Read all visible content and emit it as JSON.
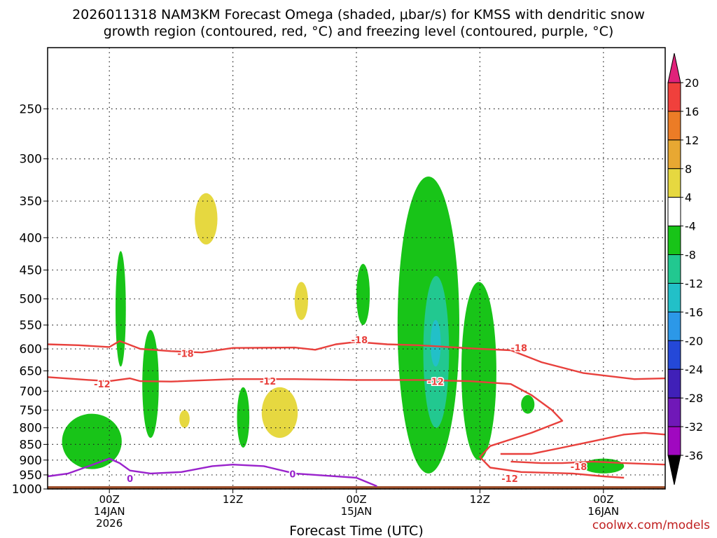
{
  "chart_data": {
    "type": "heatmap",
    "title_line1": "2026011318 NAM3KM Forecast Omega (shaded, μbar/s) for KMSS with dendritic snow",
    "title_line2": "growth region (contoured, red, °C) and freezing level (contoured, purple, °C)",
    "xlabel": "Forecast Time (UTC)",
    "credit": "coolwx.com/models",
    "x_range_hours": [
      -6,
      54
    ],
    "x_ticks": [
      {
        "hour": 0,
        "lines": [
          "00Z",
          "14JAN",
          "2026"
        ]
      },
      {
        "hour": 12,
        "lines": [
          "12Z"
        ]
      },
      {
        "hour": 24,
        "lines": [
          "00Z",
          "15JAN"
        ]
      },
      {
        "hour": 36,
        "lines": [
          "12Z"
        ]
      },
      {
        "hour": 48,
        "lines": [
          "00Z",
          "16JAN"
        ]
      }
    ],
    "y_scale": "log-pressure",
    "y_range_hpa": [
      1000,
      200
    ],
    "y_ticks_hpa": [
      250,
      300,
      350,
      400,
      450,
      500,
      550,
      600,
      650,
      700,
      750,
      800,
      850,
      900,
      950,
      1000
    ],
    "grid": true,
    "colorbar": {
      "levels": [
        20,
        16,
        12,
        8,
        4,
        -4,
        -8,
        -12,
        -16,
        -20,
        -24,
        -28,
        -32,
        -36
      ],
      "colors": [
        "#e0227a",
        "#f0403c",
        "#ec7c26",
        "#e8a832",
        "#e6d840",
        "#ffffff",
        "#18c418",
        "#22c890",
        "#22c0c8",
        "#2c98e8",
        "#2448d8",
        "#4020b8",
        "#7018b8",
        "#a008c0",
        "#a8a8a8",
        "#000000"
      ]
    },
    "omega_regions": [
      {
        "sign": "ascent",
        "level": -4,
        "hour_range": [
          0.6,
          1.6
        ],
        "p_range": [
          640,
          420
        ]
      },
      {
        "sign": "ascent",
        "level": -4,
        "hour_range": [
          3.2,
          4.8
        ],
        "p_range": [
          830,
          560
        ]
      },
      {
        "sign": "ascent",
        "level": -4,
        "hour_range": [
          -4.6,
          1.2
        ],
        "p_range": [
          930,
          760
        ]
      },
      {
        "sign": "ascent",
        "level": -4,
        "hour_range": [
          12.4,
          13.6
        ],
        "p_range": [
          860,
          690
        ]
      },
      {
        "sign": "ascent",
        "level": -4,
        "hour_range": [
          24.0,
          25.3
        ],
        "p_range": [
          550,
          440
        ]
      },
      {
        "sign": "ascent",
        "level": -4,
        "hour_range": [
          28.0,
          34.0
        ],
        "p_range": [
          945,
          320
        ]
      },
      {
        "sign": "ascent",
        "level": -4,
        "hour_range": [
          34.2,
          37.6
        ],
        "p_range": [
          900,
          470
        ]
      },
      {
        "sign": "ascent",
        "level": -4,
        "hour_range": [
          40.0,
          41.3
        ],
        "p_range": [
          760,
          710
        ]
      },
      {
        "sign": "ascent",
        "level": -4,
        "hour_range": [
          46.0,
          50.0
        ],
        "p_range": [
          945,
          895
        ]
      },
      {
        "sign": "ascent",
        "level": -8,
        "hour_range": [
          30.5,
          33.0
        ],
        "p_range": [
          800,
          460
        ]
      },
      {
        "sign": "ascent",
        "level": -12,
        "hour_range": [
          31.2,
          32.2
        ],
        "p_range": [
          640,
          540
        ]
      },
      {
        "sign": "descent",
        "level": 4,
        "hour_range": [
          8.3,
          10.5
        ],
        "p_range": [
          410,
          340
        ]
      },
      {
        "sign": "descent",
        "level": 4,
        "hour_range": [
          18.0,
          19.3
        ],
        "p_range": [
          540,
          470
        ]
      },
      {
        "sign": "descent",
        "level": 4,
        "hour_range": [
          14.8,
          18.3
        ],
        "p_range": [
          830,
          690
        ]
      },
      {
        "sign": "descent",
        "level": 4,
        "hour_range": [
          6.8,
          7.8
        ],
        "p_range": [
          800,
          750
        ]
      }
    ],
    "temperature_contours": [
      {
        "label": "-18",
        "color": "#e8403c",
        "points": [
          [
            -6,
            590
          ],
          [
            -3,
            592
          ],
          [
            0,
            596
          ],
          [
            1,
            583
          ],
          [
            3,
            600
          ],
          [
            6,
            605
          ],
          [
            9,
            608
          ],
          [
            12,
            598
          ],
          [
            18,
            597
          ],
          [
            20,
            602
          ],
          [
            22,
            590
          ],
          [
            24,
            585
          ],
          [
            27,
            590
          ],
          [
            30,
            592
          ],
          [
            36,
            600
          ],
          [
            39,
            603
          ],
          [
            42,
            630
          ],
          [
            46,
            655
          ],
          [
            51,
            670
          ],
          [
            54,
            668
          ]
        ]
      },
      {
        "label": "-12",
        "color": "#e8403c",
        "points": [
          [
            -6,
            665
          ],
          [
            -2,
            672
          ],
          [
            0,
            675
          ],
          [
            2,
            668
          ],
          [
            3,
            675
          ],
          [
            6,
            676
          ],
          [
            12,
            670
          ],
          [
            18,
            670
          ],
          [
            24,
            672
          ],
          [
            30,
            672
          ],
          [
            35,
            675
          ],
          [
            39,
            682
          ],
          [
            41,
            710
          ],
          [
            43,
            750
          ],
          [
            44,
            780
          ],
          [
            41,
            815
          ],
          [
            37,
            855
          ],
          [
            36,
            890
          ],
          [
            37,
            925
          ],
          [
            40,
            940
          ],
          [
            45,
            945
          ],
          [
            48,
            955
          ],
          [
            50,
            960
          ]
        ]
      },
      {
        "label": "-12",
        "color": "#e8403c",
        "points": [
          [
            38,
            880
          ],
          [
            41,
            880
          ],
          [
            44,
            860
          ],
          [
            47,
            840
          ],
          [
            50,
            820
          ],
          [
            52,
            815
          ],
          [
            54,
            820
          ]
        ]
      },
      {
        "label": "-18",
        "color": "#e8403c",
        "points": [
          [
            39,
            905
          ],
          [
            42,
            910
          ],
          [
            44,
            910
          ],
          [
            47,
            905
          ],
          [
            50,
            910
          ],
          [
            54,
            915
          ]
        ]
      },
      {
        "label": "0",
        "color": "#9922cc",
        "points": [
          [
            -6,
            955
          ],
          [
            -4,
            945
          ],
          [
            -2,
            920
          ],
          [
            0,
            895
          ],
          [
            1,
            910
          ],
          [
            2,
            935
          ],
          [
            4,
            945
          ],
          [
            7,
            940
          ],
          [
            10,
            920
          ],
          [
            12,
            915
          ],
          [
            15,
            920
          ],
          [
            18,
            945
          ],
          [
            20,
            950
          ],
          [
            24,
            960
          ],
          [
            26,
            990
          ]
        ]
      }
    ],
    "contour_labels": [
      {
        "text": "-18",
        "hour": 7.4,
        "p": 610,
        "color": "#e8403c"
      },
      {
        "text": "-18",
        "hour": 24.3,
        "p": 580,
        "color": "#e8403c"
      },
      {
        "text": "-18",
        "hour": 39.8,
        "p": 598,
        "color": "#e8403c"
      },
      {
        "text": "-18",
        "hour": 45.6,
        "p": 922,
        "color": "#e8403c"
      },
      {
        "text": "-12",
        "hour": -0.7,
        "p": 682,
        "color": "#e8403c"
      },
      {
        "text": "-12",
        "hour": 15.4,
        "p": 675,
        "color": "#e8403c"
      },
      {
        "text": "-12",
        "hour": 31.7,
        "p": 676,
        "color": "#e8403c"
      },
      {
        "text": "-12",
        "hour": 38.9,
        "p": 962,
        "color": "#e8403c"
      },
      {
        "text": "0",
        "hour": 2.0,
        "p": 962,
        "color": "#9922cc"
      },
      {
        "text": "0",
        "hour": 17.8,
        "p": 947,
        "color": "#9922cc"
      }
    ],
    "ground_color": "#9b4e2a",
    "ground_top_hpa": 990
  }
}
